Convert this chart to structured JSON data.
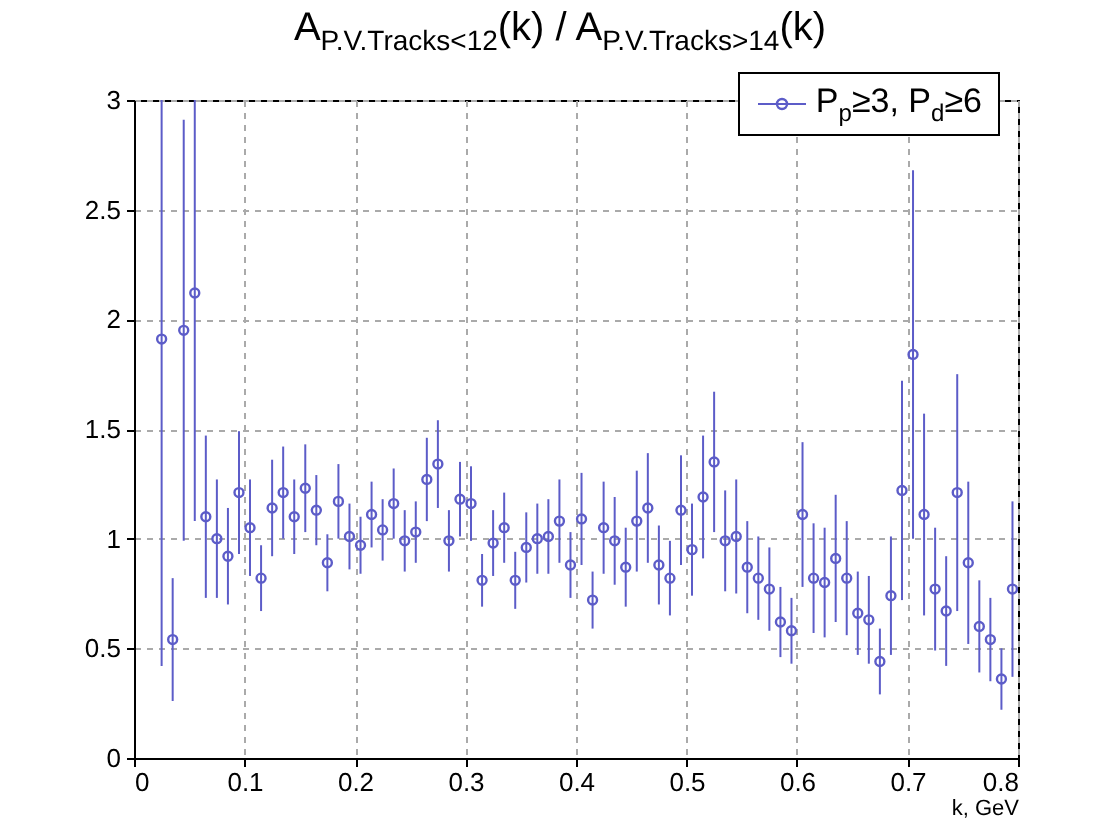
{
  "chart_data": {
    "type": "scatter",
    "title": "A$_{P.V.Tracks<12}$(k) / A$_{P.V.Tracks>14}$(k)",
    "xlabel": "k, GeV",
    "x": [
      0.025,
      0.035,
      0.045,
      0.055,
      0.065,
      0.075,
      0.085,
      0.095,
      0.105,
      0.115,
      0.125,
      0.135,
      0.145,
      0.155,
      0.165,
      0.175,
      0.185,
      0.195,
      0.205,
      0.215,
      0.225,
      0.235,
      0.245,
      0.255,
      0.265,
      0.275,
      0.285,
      0.295,
      0.305,
      0.315,
      0.325,
      0.335,
      0.345,
      0.355,
      0.365,
      0.375,
      0.385,
      0.395,
      0.405,
      0.415,
      0.425,
      0.435,
      0.445,
      0.455,
      0.465,
      0.475,
      0.485,
      0.495,
      0.505,
      0.515,
      0.525,
      0.535,
      0.545,
      0.555,
      0.565,
      0.575,
      0.585,
      0.595,
      0.605,
      0.615,
      0.625,
      0.635,
      0.645,
      0.655,
      0.665,
      0.675,
      0.685,
      0.695,
      0.705,
      0.715,
      0.725,
      0.735,
      0.745,
      0.755,
      0.765,
      0.775,
      0.785,
      0.795
    ],
    "series": [
      {
        "name": "P$_{p}$≥3, P$_{d}$≥6",
        "color": "#5c5cc8",
        "values": [
          1.91,
          0.54,
          1.95,
          2.12,
          1.1,
          1.0,
          0.92,
          1.21,
          1.05,
          0.82,
          1.14,
          1.21,
          1.1,
          1.23,
          1.13,
          0.89,
          1.17,
          1.01,
          0.97,
          1.11,
          1.04,
          1.16,
          0.99,
          1.03,
          1.27,
          1.34,
          0.99,
          1.18,
          1.16,
          0.81,
          0.98,
          1.05,
          0.81,
          0.96,
          1.0,
          1.01,
          1.08,
          0.88,
          1.09,
          0.72,
          1.05,
          0.99,
          0.87,
          1.08,
          1.14,
          0.88,
          0.82,
          1.13,
          0.95,
          1.19,
          1.35,
          0.99,
          1.01,
          0.87,
          0.82,
          0.77,
          0.62,
          0.58,
          1.11,
          0.82,
          0.8,
          0.91,
          0.82,
          0.66,
          0.63,
          0.44,
          0.74,
          1.22,
          1.84,
          1.11,
          0.77,
          0.67,
          1.21,
          0.89,
          0.6,
          0.54,
          0.36,
          0.77
        ],
        "errors": [
          1.49,
          0.28,
          0.96,
          1.04,
          0.37,
          0.27,
          0.22,
          0.28,
          0.22,
          0.15,
          0.22,
          0.21,
          0.17,
          0.2,
          0.16,
          0.13,
          0.17,
          0.15,
          0.13,
          0.15,
          0.14,
          0.16,
          0.14,
          0.14,
          0.19,
          0.2,
          0.14,
          0.17,
          0.17,
          0.12,
          0.15,
          0.16,
          0.13,
          0.16,
          0.16,
          0.17,
          0.19,
          0.15,
          0.21,
          0.13,
          0.21,
          0.2,
          0.18,
          0.23,
          0.25,
          0.18,
          0.17,
          0.25,
          0.21,
          0.28,
          0.32,
          0.23,
          0.26,
          0.21,
          0.19,
          0.19,
          0.16,
          0.15,
          0.33,
          0.25,
          0.25,
          0.29,
          0.26,
          0.19,
          0.2,
          0.15,
          0.27,
          0.5,
          0.84,
          0.46,
          0.28,
          0.25,
          0.54,
          0.37,
          0.21,
          0.19,
          0.14,
          0.4
        ]
      }
    ],
    "xlim": [
      0,
      0.8
    ],
    "xticks": [
      0,
      0.1,
      0.2,
      0.3,
      0.4,
      0.5,
      0.6,
      0.7,
      0.8
    ],
    "ylim": [
      0,
      3
    ],
    "yticks": [
      0,
      0.5,
      1,
      1.5,
      2,
      2.5,
      3
    ],
    "grid": true,
    "legend": "top right",
    "marker": "circle"
  }
}
